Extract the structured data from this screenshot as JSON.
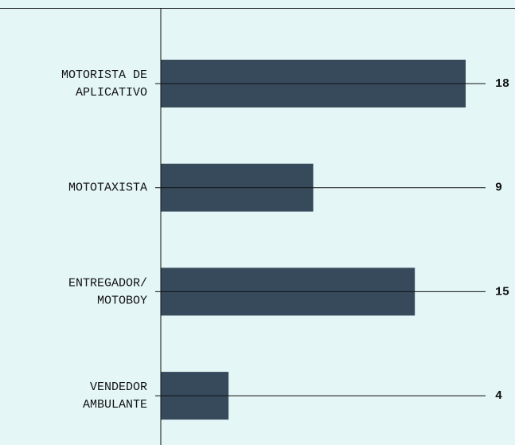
{
  "chart_data": {
    "type": "barh",
    "categories": [
      [
        "MOTORISTA DE",
        "APLICATIVO"
      ],
      [
        "MOTOTAXISTA"
      ],
      [
        "ENTREGADOR/",
        "MOTOBOY"
      ],
      [
        "VENDEDOR",
        "AMBULANTE"
      ]
    ],
    "values": [
      18,
      9,
      15,
      4
    ],
    "color": "#364a5c",
    "xlim": [
      0,
      18
    ]
  }
}
